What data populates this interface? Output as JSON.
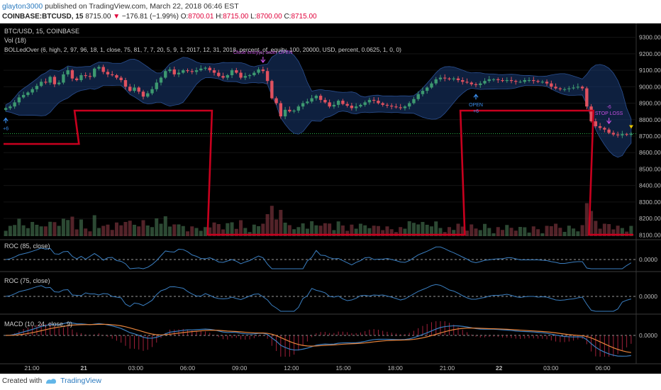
{
  "header": {
    "username": "glayton3000",
    "published_text": " published on TradingView.com, March 22, 2018 06:46 EST",
    "symbol": "COINBASE:BTCUSD, 15",
    "last": "8715.00",
    "change_arrow": "▼",
    "change": "−176.81 (−1.99%)",
    "o_label": "O:",
    "open": "8700.01",
    "h_label": "H:",
    "high": "8715.00",
    "l_label": "L:",
    "low": "8700.00",
    "c_label": "C:",
    "close": "8715.00"
  },
  "legend": {
    "symbol": "BTC/USD, 15, COINBASE",
    "volume": "Vol (18)",
    "strategy": "BOLLedOver (6, high, 2, 97, 96, 18, 1, close, 75, 81, 7, 7, 20, 5, 9, 1, 2017, 12, 31, 2018, percent_of_equity, 100, 20000, USD, percent, 0.0625, 1, 0, 0)",
    "roc1": "ROC (85, close)",
    "roc2": "ROC (75, close)",
    "macd": "MACD (10, 24, close, 9)"
  },
  "chart_data": {
    "type": "candlestick",
    "price_axis_ticks": [
      "9300.00",
      "9200.00",
      "9100.00",
      "9000.00",
      "8900.00",
      "8800.00",
      "8700.00",
      "8600.00",
      "8500.00",
      "8400.00",
      "8300.00",
      "8200.00",
      "8100.00"
    ],
    "price_range": [
      8080,
      9350
    ],
    "last_price": 8715,
    "time_axis_labels": [
      "21:00",
      "21",
      "03:00",
      "06:00",
      "09:00",
      "12:00",
      "15:00",
      "18:00",
      "21:00",
      "22",
      "03:00",
      "06:00"
    ],
    "indicator_zero_label": "0.0000",
    "close": [
      8870,
      8880,
      8905,
      8935,
      8950,
      8965,
      8985,
      9005,
      9030,
      9025,
      9060,
      9015,
      9025,
      9075,
      9100,
      9050,
      9040,
      9070,
      9065,
      9060,
      9110,
      9120,
      9090,
      9075,
      9070,
      9055,
      9040,
      9000,
      8975,
      8995,
      8970,
      8940,
      8960,
      8985,
      9025,
      9055,
      9095,
      9105,
      9075,
      9085,
      9100,
      9095,
      9090,
      9100,
      9110,
      9115,
      9100,
      9085,
      9065,
      9055,
      9070,
      9100,
      9085,
      9055,
      9065,
      9070,
      9085,
      9105,
      9095,
      9035,
      8930,
      8900,
      8820,
      8860,
      8850,
      8855,
      8880,
      8900,
      8910,
      8930,
      8945,
      8920,
      8905,
      8880,
      8890,
      8915,
      8895,
      8885,
      8870,
      8880,
      8890,
      8905,
      8920,
      8915,
      8900,
      8890,
      8885,
      8880,
      8875,
      8870,
      8880,
      8900,
      8925,
      8955,
      8975,
      8995,
      9020,
      9045,
      9055,
      9050,
      9045,
      9050,
      9040,
      9030,
      9025,
      9015,
      9010,
      9020,
      9035,
      9045,
      9045,
      9040,
      9035,
      9040,
      9035,
      9030,
      9030,
      9040,
      9040,
      9035,
      9030,
      9030,
      9020,
      9000,
      8990,
      8985,
      8985,
      8990,
      8995,
      9000,
      8990,
      8880,
      8790,
      8760,
      8750,
      8740,
      8720,
      8710,
      8705,
      8712,
      8708,
      8715
    ],
    "markers": [
      {
        "label": "Close entry(s) order OPEN",
        "type": "exit",
        "index": 58
      },
      {
        "label": "OPEN",
        "sub": "+6",
        "type": "entry",
        "index": 106
      },
      {
        "label": "STOP LOSS",
        "sub": "-6",
        "type": "exit",
        "index": 136
      },
      {
        "label": "+6",
        "type": "entry",
        "index": 0
      }
    ],
    "strategy_position": {
      "levels": [
        "low",
        "high",
        "bottom",
        "high",
        "bottom"
      ],
      "segments_index": [
        [
          0,
          16
        ],
        [
          16,
          46
        ],
        [
          46,
          103
        ],
        [
          103,
          132
        ],
        [
          132,
          142
        ]
      ]
    },
    "colors": {
      "up": "#3d9970",
      "down": "#e0515f",
      "bands": "#1a3a72",
      "position_line": "#c8001e",
      "roc_line": "#3a7ec0",
      "macd_line": "#3a7ec0",
      "signal_line": "#e8843c",
      "hist": "#a0203a",
      "last_price_line": "#2bb34a",
      "marker_entry": "#3a8ff0",
      "marker_exit": "#c44ee0"
    }
  },
  "footer": {
    "created_with": "Created with",
    "brand": "TradingView"
  }
}
